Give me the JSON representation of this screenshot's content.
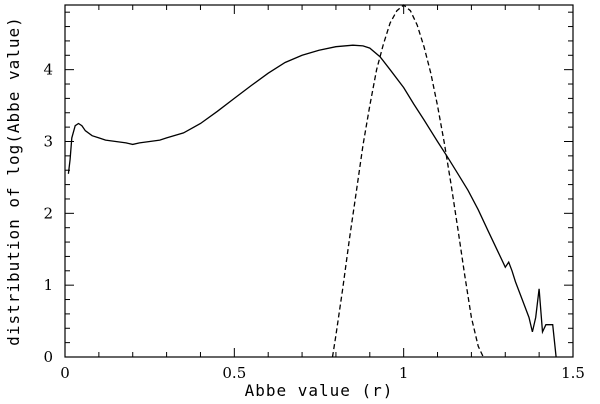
{
  "chart_data": {
    "type": "line",
    "title": "",
    "xlabel": "Abbe value (r)",
    "ylabel": "distribution of log(Abbe value)",
    "xlim": [
      0,
      1.5
    ],
    "ylim": [
      0,
      4.9
    ],
    "xticks_major": [
      0,
      0.5,
      1,
      1.5
    ],
    "xtick_labels": [
      "0",
      "0.5",
      "1",
      "1.5"
    ],
    "yticks_major": [
      0,
      1,
      2,
      3,
      4
    ],
    "ytick_labels": [
      "0",
      "1",
      "2",
      "3",
      "4"
    ],
    "grid": false,
    "series": [
      {
        "style": "solid",
        "x": [
          0.01,
          0.015,
          0.02,
          0.03,
          0.04,
          0.05,
          0.06,
          0.08,
          0.1,
          0.12,
          0.15,
          0.18,
          0.2,
          0.22,
          0.25,
          0.28,
          0.3,
          0.35,
          0.4,
          0.45,
          0.5,
          0.55,
          0.6,
          0.65,
          0.7,
          0.75,
          0.8,
          0.85,
          0.88,
          0.9,
          0.93,
          0.96,
          1.0,
          1.03,
          1.06,
          1.1,
          1.13,
          1.16,
          1.19,
          1.22,
          1.25,
          1.28,
          1.3,
          1.31,
          1.32,
          1.33,
          1.35,
          1.37,
          1.38,
          1.39,
          1.4,
          1.41,
          1.42,
          1.43,
          1.44,
          1.45
        ],
        "y": [
          2.55,
          2.75,
          3.05,
          3.22,
          3.25,
          3.22,
          3.15,
          3.08,
          3.05,
          3.02,
          3.0,
          2.98,
          2.96,
          2.98,
          3.0,
          3.02,
          3.05,
          3.12,
          3.25,
          3.42,
          3.6,
          3.78,
          3.95,
          4.1,
          4.2,
          4.27,
          4.32,
          4.34,
          4.33,
          4.3,
          4.18,
          4.0,
          3.75,
          3.52,
          3.3,
          3.0,
          2.78,
          2.55,
          2.32,
          2.05,
          1.75,
          1.45,
          1.25,
          1.32,
          1.2,
          1.05,
          0.8,
          0.55,
          0.35,
          0.55,
          0.95,
          0.35,
          0.45,
          0.45,
          0.45,
          0.0
        ]
      },
      {
        "style": "dashed",
        "x": [
          0.79,
          0.8,
          0.82,
          0.84,
          0.86,
          0.88,
          0.9,
          0.92,
          0.94,
          0.96,
          0.98,
          1.0,
          1.02,
          1.04,
          1.06,
          1.08,
          1.1,
          1.12,
          1.14,
          1.16,
          1.18,
          1.2,
          1.22,
          1.235
        ],
        "y": [
          0.0,
          0.3,
          0.95,
          1.65,
          2.3,
          2.95,
          3.5,
          4.0,
          4.35,
          4.65,
          4.82,
          4.9,
          4.82,
          4.62,
          4.32,
          3.95,
          3.5,
          2.98,
          2.4,
          1.78,
          1.15,
          0.55,
          0.15,
          0.0
        ]
      }
    ]
  }
}
